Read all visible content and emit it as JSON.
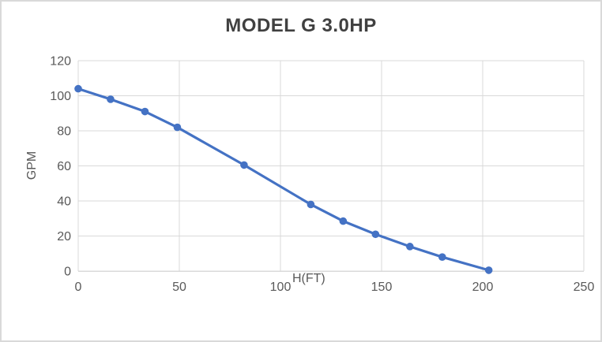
{
  "window": {
    "background": "#ffffff",
    "border_color": "#d9d9d9"
  },
  "chart_data": {
    "type": "line",
    "title": "MODEL G 3.0HP",
    "xlabel": "H(FT)",
    "ylabel": "GPM",
    "x": [
      0,
      16,
      33,
      49,
      82,
      115,
      131,
      147,
      164,
      180,
      203
    ],
    "y": [
      104,
      98,
      91,
      82,
      60.5,
      38,
      28.5,
      21,
      14,
      8,
      0.5
    ],
    "xlim": [
      0,
      250
    ],
    "ylim": [
      0,
      120
    ],
    "x_ticks": [
      0,
      50,
      100,
      150,
      200,
      250
    ],
    "y_ticks": [
      0,
      20,
      40,
      60,
      80,
      100,
      120
    ],
    "grid": true,
    "legend_position": "none",
    "line_color": "#4472c4",
    "marker_color": "#4472c4",
    "marker_style": "circle",
    "gridline_color": "#d9d9d9",
    "axis_line_color": "#d9d9d9",
    "tick_label_color": "#595959",
    "axis_title_color": "#595959",
    "title_color": "#404040"
  }
}
